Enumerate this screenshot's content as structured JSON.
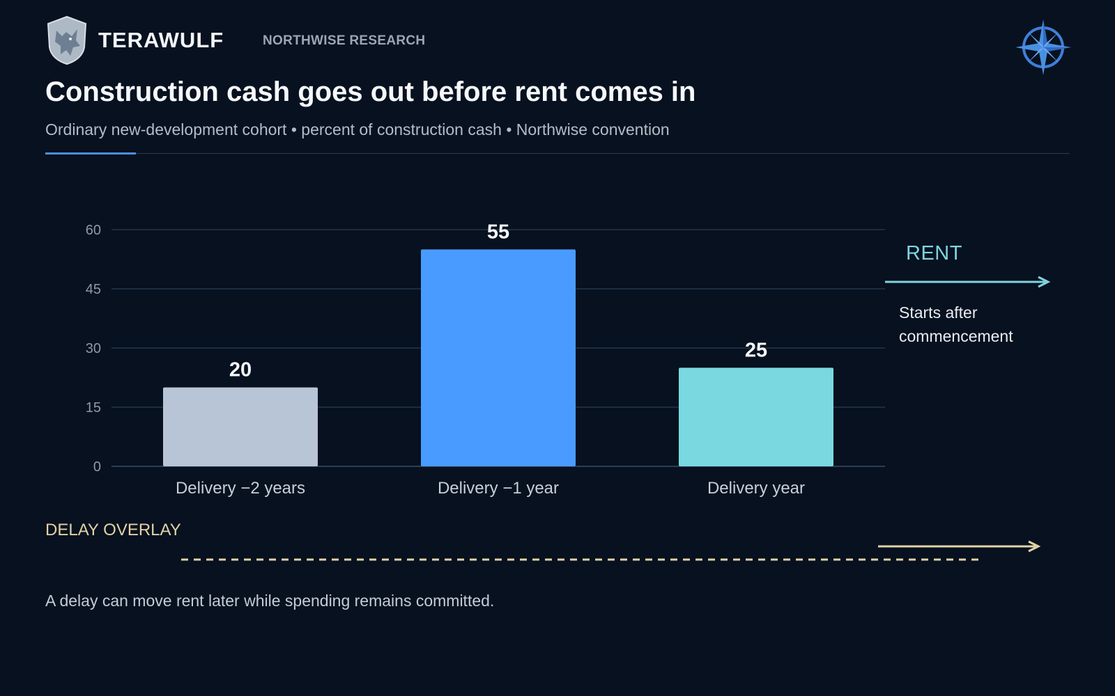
{
  "header": {
    "brand": "TERAWULF",
    "org": "NORTHWISE RESEARCH",
    "logo_icon": "wolf-shield-icon",
    "compass_icon": "compass-rose-icon"
  },
  "title": "Construction cash goes out before rent comes in",
  "subtitle": "Ordinary new-development cohort • percent of construction cash • Northwise convention",
  "chart_data": {
    "type": "bar",
    "categories": [
      "Delivery −2 years",
      "Delivery −1 year",
      "Delivery year"
    ],
    "values": [
      20,
      55,
      25
    ],
    "data_labels": [
      "20",
      "55",
      "25"
    ],
    "colors": [
      "#b7c5d6",
      "#4a9bff",
      "#7ad8e0"
    ],
    "title": "",
    "xlabel": "",
    "ylabel": "",
    "ylim": [
      0,
      60
    ],
    "yticks": [
      0,
      15,
      30,
      45,
      60
    ],
    "grid": true
  },
  "annotations": {
    "rent_label": "RENT",
    "rent_note": "Starts after commencement",
    "delay_label": "DELAY OVERLAY",
    "rent_color": "#7fd4e0",
    "delay_color": "#e3d2a6"
  },
  "footnote": "A delay can move rent later while spending remains committed."
}
